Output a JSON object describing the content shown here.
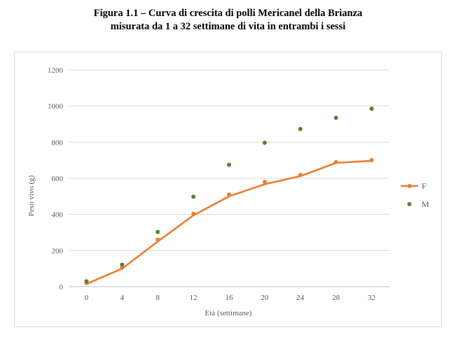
{
  "title_lines": [
    "Figura 1.1 – Curva di crescita di polli Mericanel della Brianza",
    "misurata da 1 a 32 settimane di vita in entrambi i sessi"
  ],
  "chart_data": {
    "type": "line",
    "x": [
      0,
      4,
      8,
      12,
      16,
      20,
      24,
      28,
      32
    ],
    "categories": [
      "0",
      "4",
      "8",
      "12",
      "16",
      "20",
      "24",
      "28",
      "32"
    ],
    "xlabel": "Età (settimane)",
    "ylabel": "Peso vivo (g)",
    "ylim": [
      0,
      1200
    ],
    "yticks": [
      0,
      200,
      400,
      600,
      800,
      1000,
      1200
    ],
    "grid": true,
    "legend_position": "right",
    "series": [
      {
        "name": "F",
        "color": "#ed7d31",
        "markers": [
          20,
          105,
          260,
          403,
          510,
          580,
          618,
          690,
          700
        ],
        "line": [
          15,
          100,
          250,
          395,
          500,
          567,
          612,
          685,
          697
        ],
        "style": "line+markers"
      },
      {
        "name": "M",
        "color": "#548235",
        "markers": [
          30,
          122,
          303,
          498,
          675,
          797,
          873,
          935,
          985
        ],
        "style": "markers"
      }
    ]
  }
}
